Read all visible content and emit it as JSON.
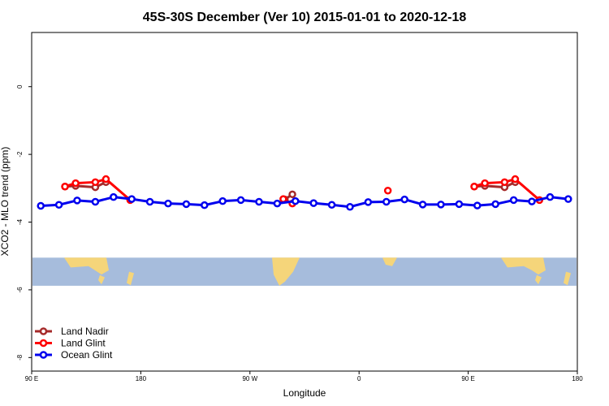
{
  "chart_data": {
    "type": "line",
    "title": "45S-30S December (Ver 10)   2015-01-01 to 2020-12-18",
    "xlabel": "Longitude",
    "ylabel": "XCO2 - MLO trend (ppm)",
    "xlim": [
      90,
      450
    ],
    "ylim": [
      -8.4,
      1.6
    ],
    "x_ticks": [
      {
        "value": 90,
        "label": "90 E"
      },
      {
        "value": 162,
        "label": "180"
      },
      {
        "value": 234,
        "label": "90 W"
      },
      {
        "value": 306,
        "label": "0"
      },
      {
        "value": 378,
        "label": "90 E"
      },
      {
        "value": 450,
        "label": "180"
      }
    ],
    "y_ticks": [
      {
        "value": 0,
        "label": "0"
      },
      {
        "value": -2,
        "label": "-2"
      },
      {
        "value": -4,
        "label": "-4"
      },
      {
        "value": -6,
        "label": "-6"
      },
      {
        "value": -8,
        "label": "-8"
      }
    ],
    "map_strip": {
      "y_top": -5.05,
      "y_bottom": -5.88,
      "ocean_color": "#a6bcdc",
      "land_color": "#f5d57a"
    },
    "series": [
      {
        "name": "Land Nadir",
        "color": "#a52a2a",
        "segments": [
          {
            "x": [
              112,
              119,
              132,
              139
            ],
            "y": [
              -2.95,
              -2.93,
              -2.97,
              -2.82
            ]
          },
          {
            "x": [
              257,
              262
            ],
            "y": [
              -3.33,
              -3.18
            ]
          },
          {
            "x": [
              382,
              389,
              402,
              409
            ],
            "y": [
              -2.95,
              -2.93,
              -2.97,
              -2.82
            ]
          }
        ]
      },
      {
        "name": "Land Glint",
        "color": "#ff0000",
        "segments": [
          {
            "x": [
              112,
              119,
              132,
              139,
              155
            ],
            "y": [
              -2.95,
              -2.85,
              -2.82,
              -2.73,
              -3.35
            ]
          },
          {
            "x": [
              256,
              262
            ],
            "y": [
              -3.32,
              -3.45
            ]
          },
          {
            "x": [
              325
            ],
            "y": [
              -3.07
            ]
          },
          {
            "x": [
              382,
              389,
              402,
              409,
              425
            ],
            "y": [
              -2.95,
              -2.85,
              -2.82,
              -2.73,
              -3.35
            ]
          }
        ]
      },
      {
        "name": "Ocean Glint",
        "color": "#0000ee",
        "segments": [
          {
            "x": [
              96,
              108,
              120,
              132,
              144,
              156,
              168,
              180,
              192,
              204,
              216,
              228,
              240,
              252,
              264,
              276,
              288,
              300,
              312,
              324,
              336,
              348,
              360,
              372,
              384,
              396,
              408,
              420,
              432,
              444
            ],
            "y": [
              -3.52,
              -3.49,
              -3.36,
              -3.4,
              -3.26,
              -3.32,
              -3.4,
              -3.45,
              -3.47,
              -3.5,
              -3.38,
              -3.35,
              -3.4,
              -3.45,
              -3.38,
              -3.44,
              -3.49,
              -3.55,
              -3.41,
              -3.4,
              -3.33,
              -3.48,
              -3.48,
              -3.47,
              -3.51,
              -3.47,
              -3.35,
              -3.39,
              -3.26,
              -3.32
            ]
          }
        ]
      }
    ],
    "legend": {
      "position": "bottom-left"
    }
  }
}
